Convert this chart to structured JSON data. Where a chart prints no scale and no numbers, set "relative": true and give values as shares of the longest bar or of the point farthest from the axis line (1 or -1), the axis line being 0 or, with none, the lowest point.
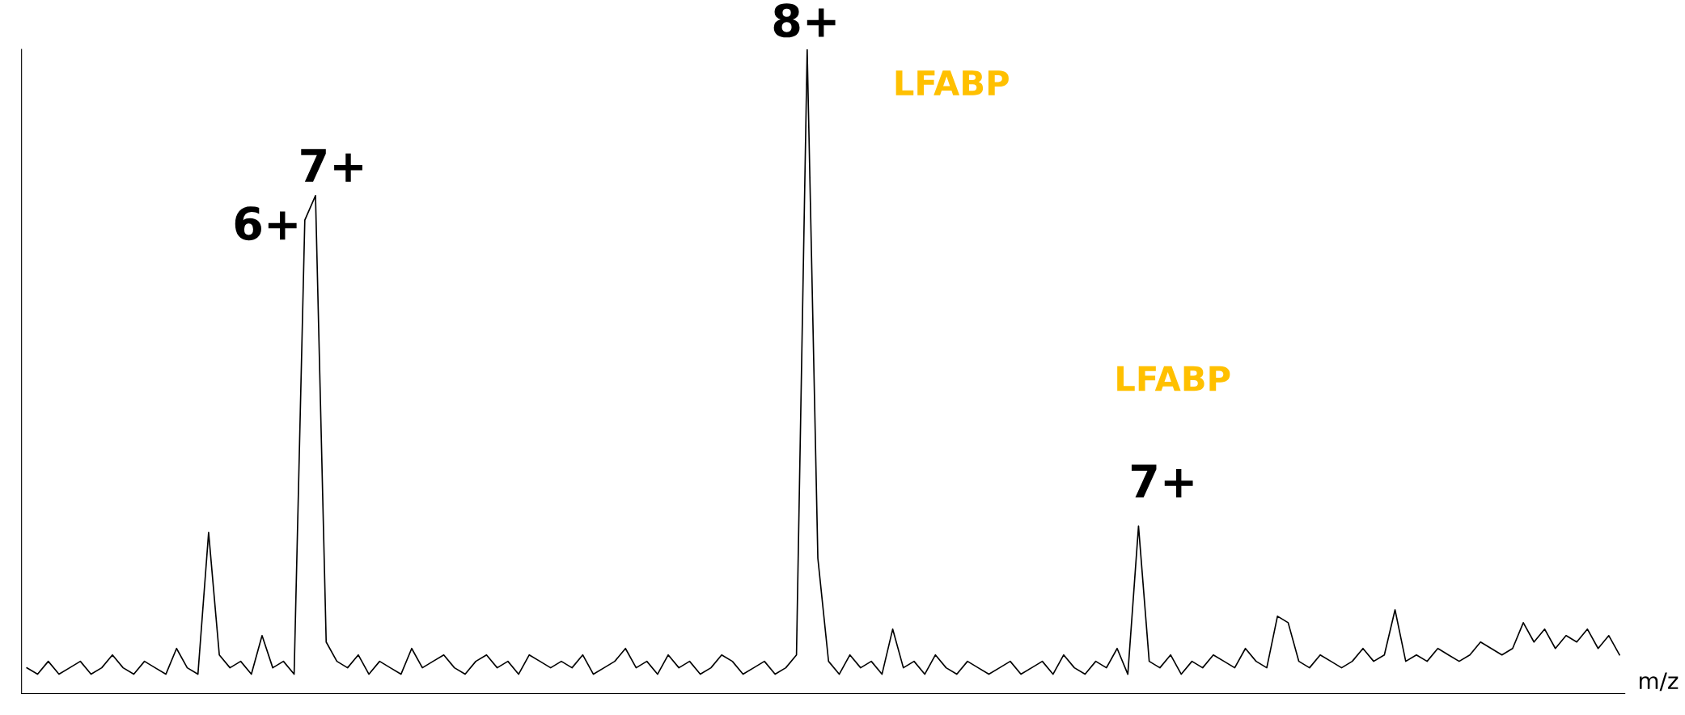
{
  "chart_data": {
    "type": "line",
    "relative": true,
    "xlabel": "m/z",
    "color": "#000000",
    "annotations": [
      "8+",
      "LFABP",
      "7+",
      "6+",
      "LFABP",
      "7+"
    ],
    "categories": [
      null,
      null,
      null,
      null,
      null,
      null,
      null,
      null,
      null,
      null,
      null,
      null,
      null,
      null,
      null,
      null,
      null,
      null,
      null,
      null,
      null,
      null,
      null,
      null,
      null,
      null,
      null,
      null,
      null,
      null,
      null,
      null,
      null,
      null,
      null,
      null,
      null,
      null,
      null,
      null,
      null,
      null,
      null,
      null,
      null,
      null,
      null,
      null,
      null,
      null,
      null,
      null,
      null,
      null,
      null,
      null,
      null,
      null,
      null,
      null,
      null,
      null,
      null,
      null,
      null,
      null,
      null,
      null,
      null,
      null,
      null,
      null,
      null,
      null,
      null,
      null,
      null,
      null,
      null,
      null,
      null,
      null,
      null,
      null,
      null,
      null,
      null,
      null,
      null,
      null,
      null,
      null,
      null,
      null,
      null,
      null,
      null,
      null,
      null,
      null,
      null,
      null,
      null,
      null,
      null,
      null,
      null,
      null,
      null,
      null,
      null,
      null,
      null,
      null,
      null,
      null,
      null,
      null,
      null,
      null,
      null,
      null,
      null,
      null,
      null,
      null,
      null,
      null,
      null,
      null,
      null,
      null,
      null,
      null,
      null,
      null,
      null,
      null,
      null,
      null,
      null,
      null,
      null,
      null,
      null,
      null,
      null,
      null,
      null,
      null
    ],
    "values": [
      0.04,
      0.03,
      0.05,
      0.03,
      0.04,
      0.05,
      0.03,
      0.04,
      0.06,
      0.04,
      0.03,
      0.05,
      0.04,
      0.03,
      0.07,
      0.04,
      0.03,
      0.25,
      0.06,
      0.04,
      0.05,
      0.03,
      0.09,
      0.04,
      0.05,
      0.03,
      0.735,
      0.773,
      0.08,
      0.05,
      0.04,
      0.06,
      0.03,
      0.05,
      0.04,
      0.03,
      0.07,
      0.04,
      0.05,
      0.06,
      0.04,
      0.03,
      0.05,
      0.06,
      0.04,
      0.05,
      0.03,
      0.06,
      0.05,
      0.04,
      0.05,
      0.04,
      0.06,
      0.03,
      0.04,
      0.05,
      0.07,
      0.04,
      0.05,
      0.03,
      0.06,
      0.04,
      0.05,
      0.03,
      0.04,
      0.06,
      0.05,
      0.03,
      0.04,
      0.05,
      0.03,
      0.04,
      0.06,
      1.0,
      0.21,
      0.05,
      0.03,
      0.06,
      0.04,
      0.05,
      0.03,
      0.1,
      0.04,
      0.05,
      0.03,
      0.06,
      0.04,
      0.03,
      0.05,
      0.04,
      0.03,
      0.04,
      0.05,
      0.03,
      0.04,
      0.05,
      0.03,
      0.06,
      0.04,
      0.03,
      0.05,
      0.04,
      0.07,
      0.03,
      0.26,
      0.05,
      0.04,
      0.06,
      0.03,
      0.05,
      0.04,
      0.06,
      0.05,
      0.04,
      0.07,
      0.05,
      0.04,
      0.12,
      0.11,
      0.05,
      0.04,
      0.06,
      0.05,
      0.04,
      0.05,
      0.07,
      0.05,
      0.06,
      0.13,
      0.05,
      0.06,
      0.05,
      0.07,
      0.06,
      0.05,
      0.06,
      0.08,
      0.07,
      0.06,
      0.07,
      0.11,
      0.08,
      0.1,
      0.07,
      0.09,
      0.08,
      0.1,
      0.07,
      0.09,
      0.06
    ]
  }
}
